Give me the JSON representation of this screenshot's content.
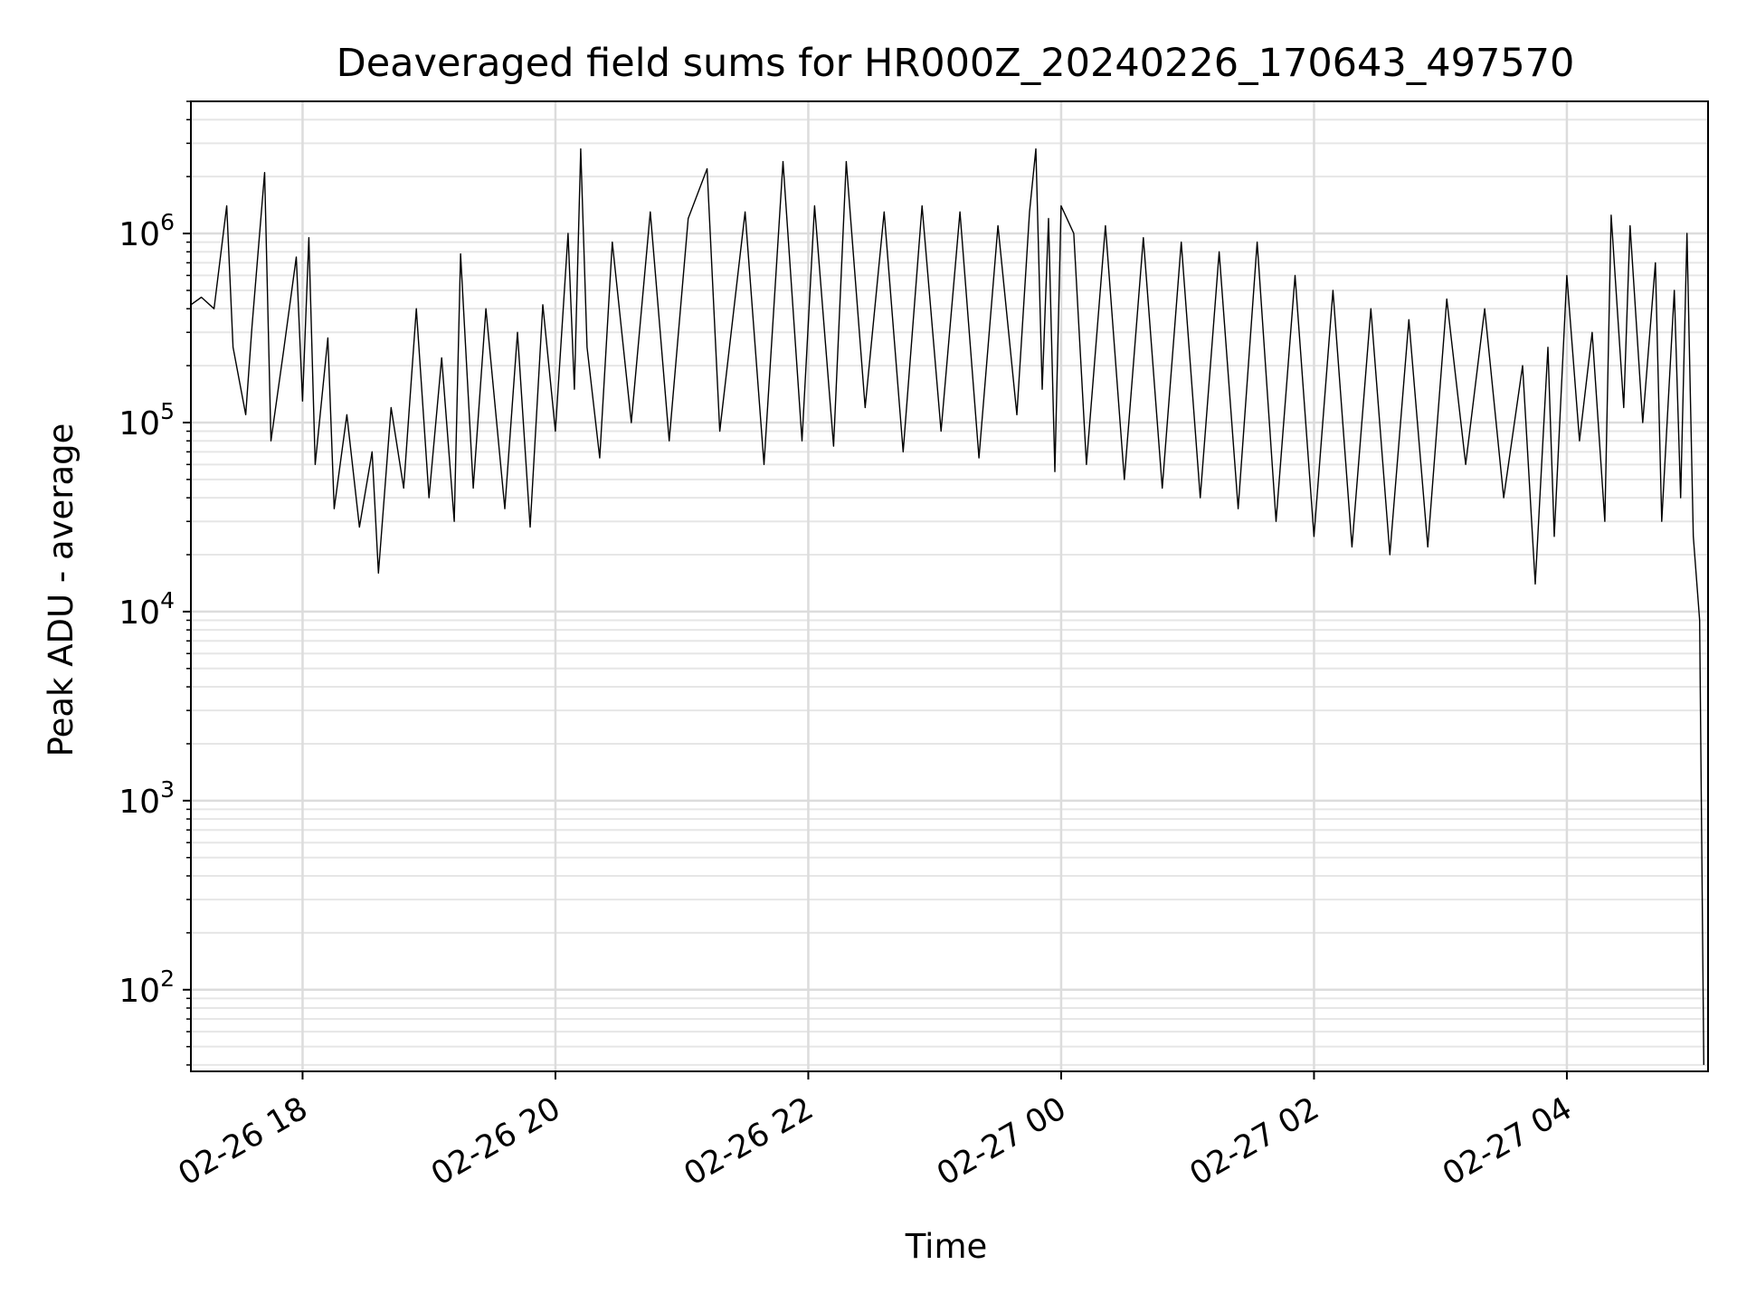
{
  "chart_data": {
    "type": "line",
    "title": "Deaveraged field sums for HR000Z_20240226_170643_497570",
    "xlabel": "Time",
    "ylabel": "Peak ADU - average",
    "yscale": "log",
    "ylim": [
      37,
      5000000
    ],
    "xlim": [
      "2024-02-26 17:07",
      "2024-02-27 05:07"
    ],
    "grid": "major and minor",
    "legend": "none",
    "x_ticks": [
      {
        "x": "2024-02-26 18:00",
        "label": "02-26 18"
      },
      {
        "x": "2024-02-26 20:00",
        "label": "02-26 20"
      },
      {
        "x": "2024-02-26 22:00",
        "label": "02-26 22"
      },
      {
        "x": "2024-02-27 00:00",
        "label": "02-27 00"
      },
      {
        "x": "2024-02-27 02:00",
        "label": "02-27 02"
      },
      {
        "x": "2024-02-27 04:00",
        "label": "02-27 04"
      }
    ],
    "y_ticks": [
      {
        "value": 100,
        "base": "10",
        "exp": "2"
      },
      {
        "value": 1000,
        "base": "10",
        "exp": "3"
      },
      {
        "value": 10000,
        "base": "10",
        "exp": "4"
      },
      {
        "value": 100000,
        "base": "10",
        "exp": "5"
      },
      {
        "value": 1000000,
        "base": "10",
        "exp": "6"
      }
    ],
    "series": [
      {
        "color": "#000000",
        "points": [
          [
            "2024-02-26 17:07",
            420000
          ],
          [
            "2024-02-26 17:12",
            460000
          ],
          [
            "2024-02-26 17:18",
            400000
          ],
          [
            "2024-02-26 17:24",
            1400000
          ],
          [
            "2024-02-26 17:27",
            250000
          ],
          [
            "2024-02-26 17:33",
            110000
          ],
          [
            "2024-02-26 17:36",
            320000
          ],
          [
            "2024-02-26 17:42",
            2100000
          ],
          [
            "2024-02-26 17:45",
            80000
          ],
          [
            "2024-02-26 17:51",
            240000
          ],
          [
            "2024-02-26 17:57",
            750000
          ],
          [
            "2024-02-26 18:00",
            130000
          ],
          [
            "2024-02-26 18:03",
            950000
          ],
          [
            "2024-02-26 18:06",
            60000
          ],
          [
            "2024-02-26 18:12",
            280000
          ],
          [
            "2024-02-26 18:15",
            35000
          ],
          [
            "2024-02-26 18:21",
            110000
          ],
          [
            "2024-02-26 18:27",
            28000
          ],
          [
            "2024-02-26 18:33",
            70000
          ],
          [
            "2024-02-26 18:36",
            16000
          ],
          [
            "2024-02-26 18:42",
            120000
          ],
          [
            "2024-02-26 18:48",
            45000
          ],
          [
            "2024-02-26 18:54",
            400000
          ],
          [
            "2024-02-26 19:00",
            40000
          ],
          [
            "2024-02-26 19:06",
            220000
          ],
          [
            "2024-02-26 19:12",
            30000
          ],
          [
            "2024-02-26 19:15",
            780000
          ],
          [
            "2024-02-26 19:21",
            45000
          ],
          [
            "2024-02-26 19:27",
            400000
          ],
          [
            "2024-02-26 19:36",
            35000
          ],
          [
            "2024-02-26 19:42",
            300000
          ],
          [
            "2024-02-26 19:48",
            28000
          ],
          [
            "2024-02-26 19:54",
            420000
          ],
          [
            "2024-02-26 20:00",
            90000
          ],
          [
            "2024-02-26 20:06",
            1000000
          ],
          [
            "2024-02-26 20:09",
            150000
          ],
          [
            "2024-02-26 20:12",
            2800000
          ],
          [
            "2024-02-26 20:15",
            250000
          ],
          [
            "2024-02-26 20:21",
            65000
          ],
          [
            "2024-02-26 20:27",
            900000
          ],
          [
            "2024-02-26 20:36",
            100000
          ],
          [
            "2024-02-26 20:45",
            1300000
          ],
          [
            "2024-02-26 20:54",
            80000
          ],
          [
            "2024-02-26 21:03",
            1200000
          ],
          [
            "2024-02-26 21:12",
            2200000
          ],
          [
            "2024-02-26 21:18",
            90000
          ],
          [
            "2024-02-26 21:30",
            1300000
          ],
          [
            "2024-02-26 21:39",
            60000
          ],
          [
            "2024-02-26 21:48",
            2400000
          ],
          [
            "2024-02-26 21:57",
            80000
          ],
          [
            "2024-02-26 22:03",
            1400000
          ],
          [
            "2024-02-26 22:12",
            75000
          ],
          [
            "2024-02-26 22:18",
            2400000
          ],
          [
            "2024-02-26 22:27",
            120000
          ],
          [
            "2024-02-26 22:36",
            1300000
          ],
          [
            "2024-02-26 22:45",
            70000
          ],
          [
            "2024-02-26 22:54",
            1400000
          ],
          [
            "2024-02-26 23:03",
            90000
          ],
          [
            "2024-02-26 23:12",
            1300000
          ],
          [
            "2024-02-26 23:21",
            65000
          ],
          [
            "2024-02-26 23:30",
            1100000
          ],
          [
            "2024-02-26 23:39",
            110000
          ],
          [
            "2024-02-26 23:45",
            1300000
          ],
          [
            "2024-02-26 23:48",
            2800000
          ],
          [
            "2024-02-26 23:51",
            150000
          ],
          [
            "2024-02-26 23:54",
            1200000
          ],
          [
            "2024-02-26 23:57",
            55000
          ],
          [
            "2024-02-27 00:00",
            1400000
          ],
          [
            "2024-02-27 00:06",
            1000000
          ],
          [
            "2024-02-27 00:12",
            60000
          ],
          [
            "2024-02-27 00:21",
            1100000
          ],
          [
            "2024-02-27 00:30",
            50000
          ],
          [
            "2024-02-27 00:39",
            950000
          ],
          [
            "2024-02-27 00:48",
            45000
          ],
          [
            "2024-02-27 00:57",
            900000
          ],
          [
            "2024-02-27 01:06",
            40000
          ],
          [
            "2024-02-27 01:15",
            800000
          ],
          [
            "2024-02-27 01:24",
            35000
          ],
          [
            "2024-02-27 01:33",
            900000
          ],
          [
            "2024-02-27 01:42",
            30000
          ],
          [
            "2024-02-27 01:51",
            600000
          ],
          [
            "2024-02-27 02:00",
            25000
          ],
          [
            "2024-02-27 02:09",
            500000
          ],
          [
            "2024-02-27 02:18",
            22000
          ],
          [
            "2024-02-27 02:27",
            400000
          ],
          [
            "2024-02-27 02:36",
            20000
          ],
          [
            "2024-02-27 02:45",
            350000
          ],
          [
            "2024-02-27 02:54",
            22000
          ],
          [
            "2024-02-27 03:03",
            450000
          ],
          [
            "2024-02-27 03:12",
            60000
          ],
          [
            "2024-02-27 03:21",
            400000
          ],
          [
            "2024-02-27 03:30",
            40000
          ],
          [
            "2024-02-27 03:39",
            200000
          ],
          [
            "2024-02-27 03:45",
            14000
          ],
          [
            "2024-02-27 03:51",
            250000
          ],
          [
            "2024-02-27 03:54",
            25000
          ],
          [
            "2024-02-27 04:00",
            600000
          ],
          [
            "2024-02-27 04:06",
            80000
          ],
          [
            "2024-02-27 04:12",
            300000
          ],
          [
            "2024-02-27 04:18",
            30000
          ],
          [
            "2024-02-27 04:21",
            1250000
          ],
          [
            "2024-02-27 04:27",
            120000
          ],
          [
            "2024-02-27 04:30",
            1100000
          ],
          [
            "2024-02-27 04:36",
            100000
          ],
          [
            "2024-02-27 04:42",
            700000
          ],
          [
            "2024-02-27 04:45",
            30000
          ],
          [
            "2024-02-27 04:51",
            500000
          ],
          [
            "2024-02-27 04:54",
            40000
          ],
          [
            "2024-02-27 04:57",
            1000000
          ],
          [
            "2024-02-27 05:00",
            25000
          ],
          [
            "2024-02-27 05:03",
            9000
          ],
          [
            "2024-02-27 05:05",
            40
          ]
        ]
      }
    ]
  }
}
